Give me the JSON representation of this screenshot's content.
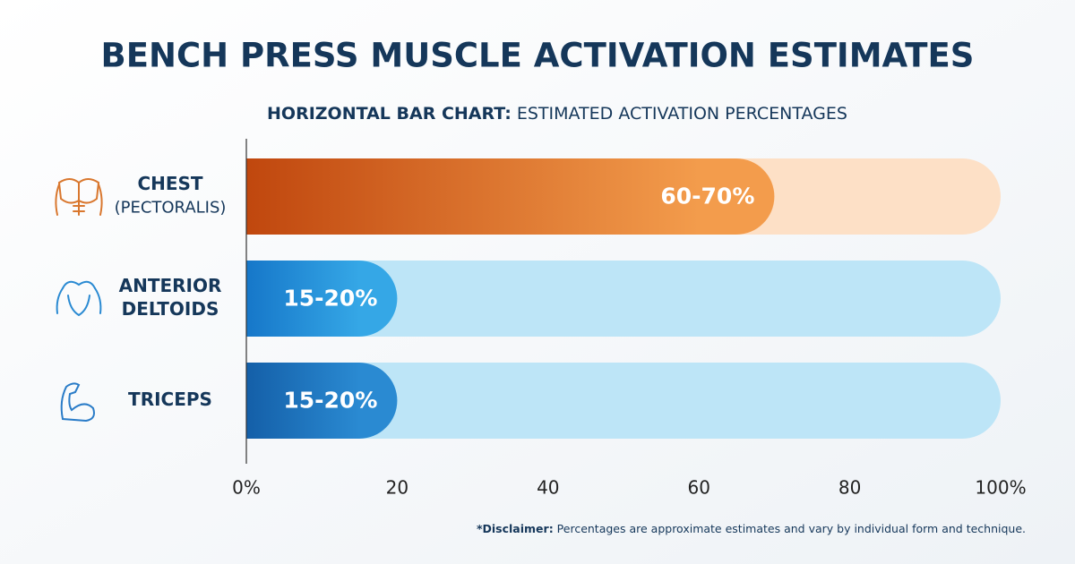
{
  "chart_data": {
    "type": "range_bar",
    "title": "BENCH PRESS MUSCLE ACTIVATION ESTIMATES",
    "subtitle": {
      "lead": "HORIZONTAL BAR CHART:",
      "text": "ESTIMATED ACTIVATION PERCENTAGES"
    },
    "categories": [
      [
        "CHEST",
        "(PECTORALIS)"
      ],
      [
        "ANTERIOR",
        "DELTOIDS"
      ],
      [
        "TRICEPS"
      ]
    ],
    "low": [
      60,
      15,
      15
    ],
    "high": [
      70,
      20,
      20
    ],
    "value_labels": [
      "60-70%",
      "15-20%",
      "15-20%"
    ],
    "bar_colors": [
      [
        "#c0470e",
        "#f39c4c"
      ],
      [
        "#1677c9",
        "#35a7e6"
      ],
      [
        "#145fa8",
        "#2a8ad2"
      ]
    ],
    "track_colors": [
      "#fde0c6",
      "#bde5f7",
      "#bde5f7"
    ],
    "xlim": [
      0,
      100
    ],
    "xticks": [
      {
        "value": 0,
        "label": "0%"
      },
      20,
      40,
      60,
      80,
      {
        "value": 100,
        "label": "100%"
      }
    ],
    "note": {
      "lead": "*Disclaimer:",
      "text": "Percentages are approximate estimates and vary by individual form and technique."
    }
  }
}
